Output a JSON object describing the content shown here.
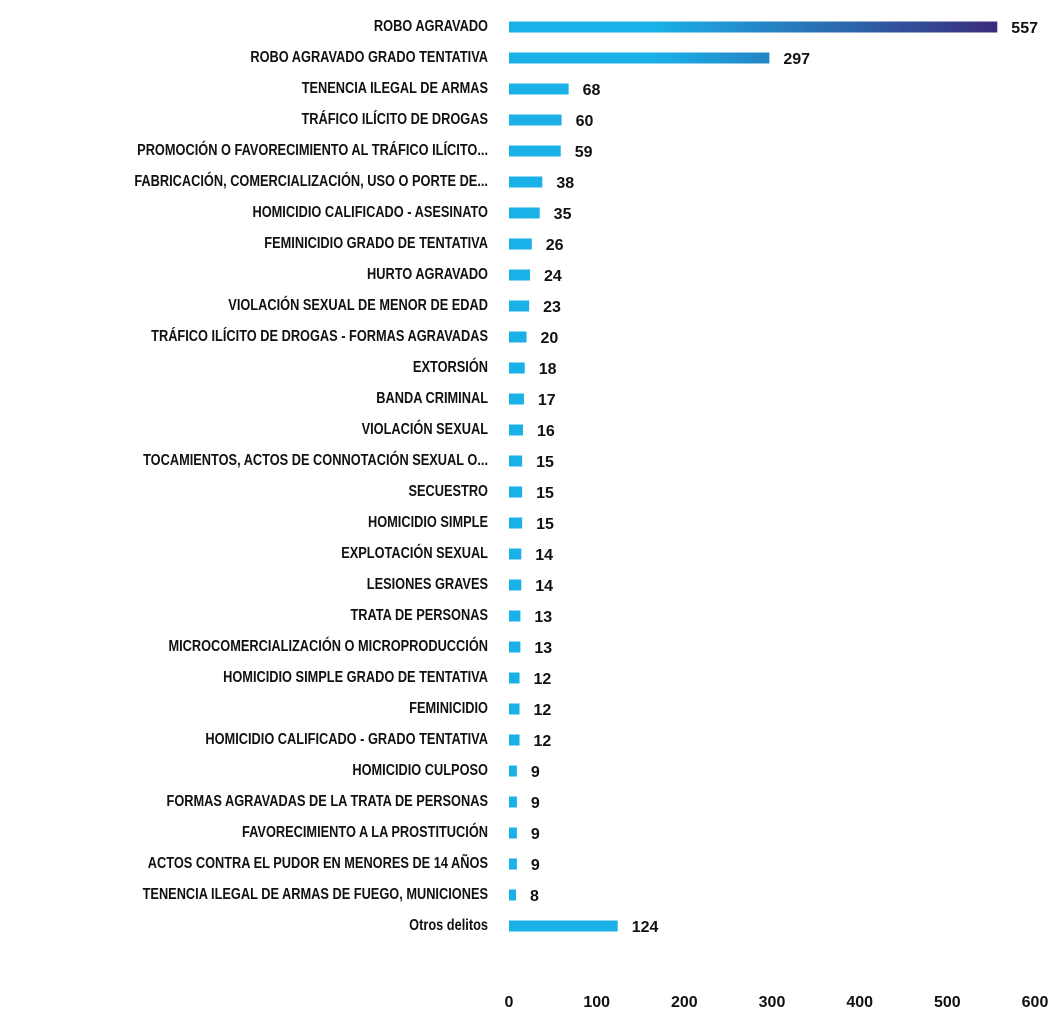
{
  "chart_data": {
    "type": "bar",
    "orientation": "horizontal",
    "categories": [
      "ROBO AGRAVADO",
      "ROBO AGRAVADO GRADO TENTATIVA",
      "TENENCIA ILEGAL DE ARMAS",
      "TRÁFICO ILÍCITO DE DROGAS",
      "PROMOCIÓN O FAVORECIMIENTO AL TRÁFICO ILÍCITO...",
      "FABRICACIÓN, COMERCIALIZACIÓN, USO O PORTE DE...",
      "HOMICIDIO CALIFICADO - ASESINATO",
      "FEMINICIDIO GRADO DE TENTATIVA",
      "HURTO AGRAVADO",
      "VIOLACIÓN SEXUAL DE MENOR DE EDAD",
      "TRÁFICO ILÍCITO DE DROGAS - FORMAS AGRAVADAS",
      "EXTORSIÓN",
      "BANDA CRIMINAL",
      "VIOLACIÓN SEXUAL",
      "TOCAMIENTOS, ACTOS DE CONNOTACIÓN SEXUAL O...",
      "SECUESTRO",
      "HOMICIDIO SIMPLE",
      "EXPLOTACIÓN SEXUAL",
      "LESIONES GRAVES",
      "TRATA DE PERSONAS",
      "MICROCOMERCIALIZACIÓN O MICROPRODUCCIÓN",
      "HOMICIDIO SIMPLE GRADO DE TENTATIVA",
      "FEMINICIDIO",
      "HOMICIDIO CALIFICADO - GRADO TENTATIVA",
      "HOMICIDIO CULPOSO",
      "FORMAS AGRAVADAS DE LA TRATA DE PERSONAS",
      "FAVORECIMIENTO A LA PROSTITUCIÓN",
      "ACTOS CONTRA EL PUDOR EN MENORES DE 14 AÑOS",
      "TENENCIA ILEGAL DE ARMAS DE FUEGO, MUNICIONES",
      "Otros delitos"
    ],
    "values": [
      557,
      297,
      68,
      60,
      59,
      38,
      35,
      26,
      24,
      23,
      20,
      18,
      17,
      16,
      15,
      15,
      15,
      14,
      14,
      13,
      13,
      12,
      12,
      12,
      9,
      9,
      9,
      9,
      8,
      124
    ],
    "color": "#1ab0e8",
    "gradient_end_color": "#3a2d7d",
    "xlim": [
      0,
      600
    ],
    "xticks": [
      0,
      100,
      200,
      300,
      400,
      500,
      600
    ],
    "grid": false
  }
}
